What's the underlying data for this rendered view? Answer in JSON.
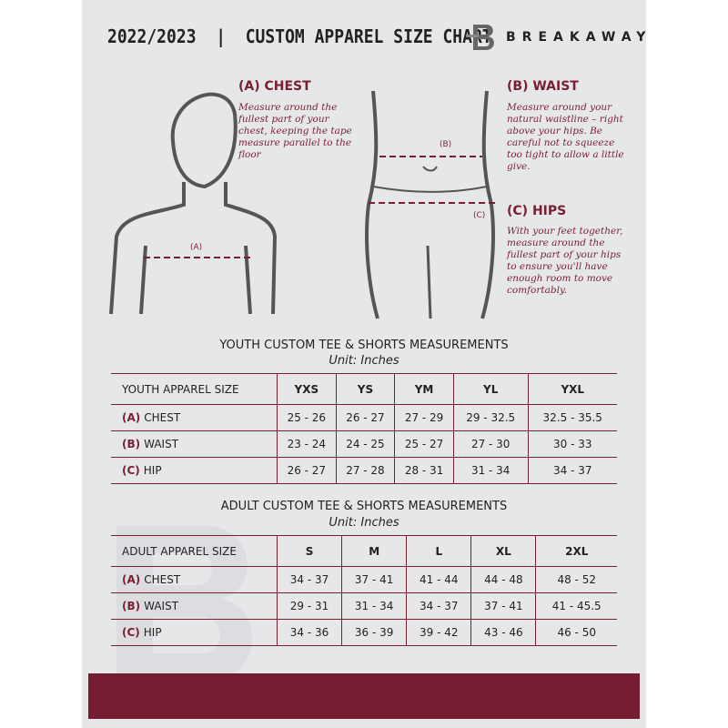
{
  "header": {
    "title": "2022/2023  |  CUSTOM APPAREL SIZE CHART",
    "brand": "BREAKAWAY"
  },
  "measures": {
    "chest": {
      "title": "(A) CHEST",
      "desc": "Measure around the fullest part of your chest, keeping the tape measure parallel to the floor",
      "marker": "(A)"
    },
    "waist": {
      "title": "(B) WAIST",
      "desc": "Measure around your natural waistline – right above your hips. Be careful not to squeeze too tight to allow a little give.",
      "marker": "(B)"
    },
    "hips": {
      "title": "(C) HIPS",
      "desc": "With your feet together, measure around the fullest part of your hips to ensure you'll have enough room to move comfortably.",
      "marker": "(C)"
    }
  },
  "youth": {
    "title": "YOUTH CUSTOM TEE & SHORTS MEASUREMENTS",
    "unit": "Unit: Inches",
    "header": [
      "YOUTH APPAREL SIZE",
      "YXS",
      "YS",
      "YM",
      "YL",
      "YXL"
    ],
    "rows": [
      {
        "code": "(A)",
        "name": "CHEST",
        "values": [
          "25 - 26",
          "26 - 27",
          "27 - 29",
          "29 - 32.5",
          "32.5 - 35.5"
        ]
      },
      {
        "code": "(B)",
        "name": "WAIST",
        "values": [
          "23 - 24",
          "24 - 25",
          "25 - 27",
          "27 - 30",
          "30 - 33"
        ]
      },
      {
        "code": "(C)",
        "name": "HIP",
        "values": [
          "26 - 27",
          "27 - 28",
          "28 - 31",
          "31 - 34",
          "34 - 37"
        ]
      }
    ]
  },
  "adult": {
    "title": "ADULT CUSTOM TEE & SHORTS MEASUREMENTS",
    "unit": "Unit: Inches",
    "header": [
      "ADULT APPAREL SIZE",
      "S",
      "M",
      "L",
      "XL",
      "2XL"
    ],
    "rows": [
      {
        "code": "(A)",
        "name": "CHEST",
        "values": [
          "34 - 37",
          "37 - 41",
          "41 - 44",
          "44 - 48",
          "48 - 52"
        ]
      },
      {
        "code": "(B)",
        "name": "WAIST",
        "values": [
          "29 - 31",
          "31 - 34",
          "34 - 37",
          "37 - 41",
          "41 - 45.5"
        ]
      },
      {
        "code": "(C)",
        "name": "HIP",
        "values": [
          "34 - 36",
          "36 - 39",
          "39 - 42",
          "43 - 46",
          "46 - 50"
        ]
      }
    ]
  },
  "colors": {
    "accent": "#7a1f32",
    "band": "#751c30",
    "background": "#e6e7e9"
  }
}
